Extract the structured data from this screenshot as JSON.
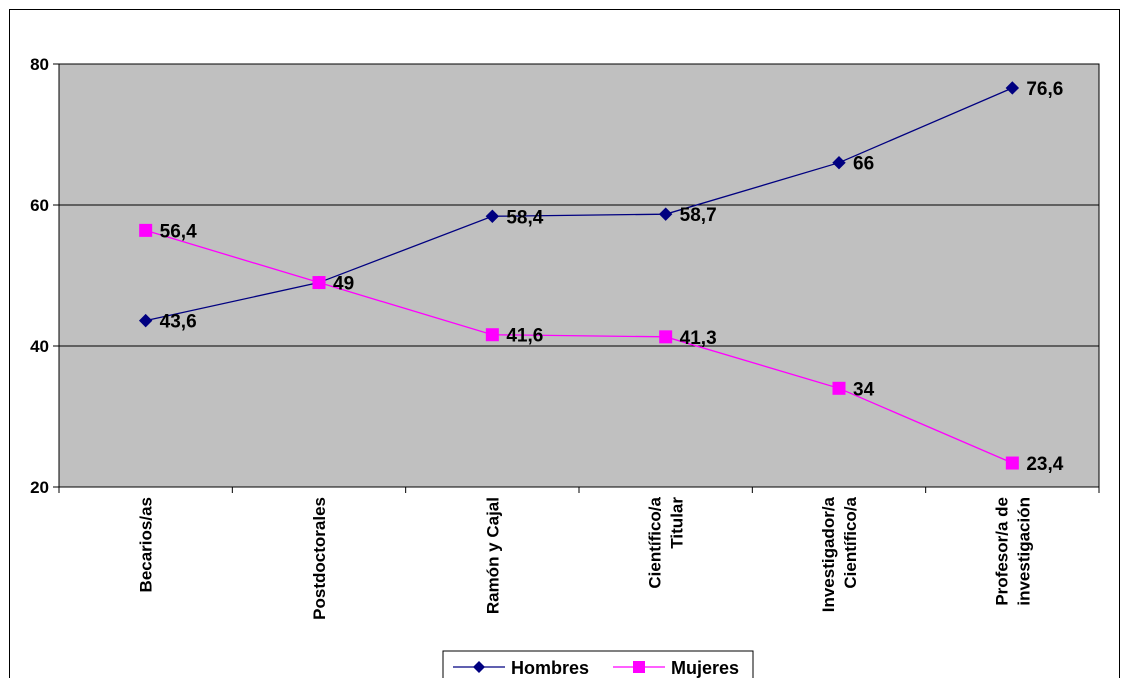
{
  "chart_data": {
    "type": "line",
    "title": "",
    "xlabel": "",
    "ylabel": "",
    "ylim": [
      20,
      80
    ],
    "yticks": [
      20,
      40,
      60,
      80
    ],
    "grid": true,
    "legend_position": "bottom",
    "plot_background": "#c0c0c0",
    "categories": [
      [
        "Becarios/as"
      ],
      [
        "Postdoctorales"
      ],
      [
        "Ramón y Cajal"
      ],
      [
        "Científico/a",
        "Titular"
      ],
      [
        "Investigador/a",
        "Científico/a"
      ],
      [
        "Profesor/a de",
        "investigación"
      ]
    ],
    "series": [
      {
        "name": "Hombres",
        "color": "#000080",
        "marker": "diamond",
        "values": [
          43.6,
          49,
          58.4,
          58.7,
          66,
          76.6
        ],
        "labels": [
          "43,6",
          "49",
          "58,4",
          "58,7",
          "66",
          "76,6"
        ]
      },
      {
        "name": "Mujeres",
        "color": "#ff00ff",
        "marker": "square",
        "values": [
          56.4,
          49,
          41.6,
          41.3,
          34,
          23.4
        ],
        "labels": [
          "56,4",
          "",
          "41,6",
          "41,3",
          "34",
          "23,4"
        ]
      }
    ]
  }
}
